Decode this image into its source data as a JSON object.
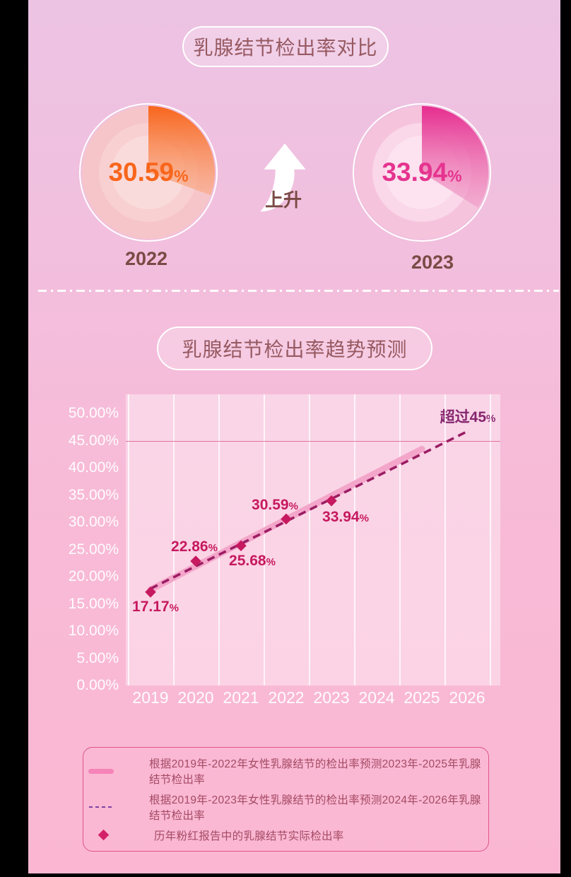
{
  "compare": {
    "title": "乳腺结节检出率对比",
    "arrow_label": "上升",
    "donuts": [
      {
        "year": "2022",
        "value": 30.59,
        "value_text": "30.59",
        "pct": "%",
        "accent": "#f8661c",
        "accent_fade": "#f9a57d",
        "base": "#f6c5c9",
        "ring1": "#f8d0d2",
        "ring2": "#fadbdb",
        "text_color": "#f8661c"
      },
      {
        "year": "2023",
        "value": 33.94,
        "value_text": "33.94",
        "pct": "%",
        "accent": "#e62d8f",
        "accent_fade": "#ef9ac6",
        "base": "#f6c3dd",
        "ring1": "#fad7e9",
        "ring2": "#fce3ef",
        "text_color": "#e5348f"
      }
    ]
  },
  "trend": {
    "title": "乳腺结节检出率趋势预测"
  },
  "chart_data": {
    "type": "line",
    "x_labels": [
      "2019",
      "2020",
      "2021",
      "2022",
      "2023",
      "2024",
      "2025",
      "2026"
    ],
    "y_ticks": [
      "0.00%",
      "5.00%",
      "10.00%",
      "15.00%",
      "20.00%",
      "25.00%",
      "30.00%",
      "35.00%",
      "40.00%",
      "45.00%",
      "50.00%"
    ],
    "ylim": [
      0,
      50
    ],
    "grid": true,
    "threshold": {
      "value": 45,
      "line_color": "#e0719c"
    },
    "annotation": {
      "text": "超过45",
      "pct": "%",
      "color": "#85256e"
    },
    "series": [
      {
        "name": "prediction_from_2019_2022",
        "style": "solid",
        "color": "#f3a6ca",
        "x": [
          2019,
          2025
        ],
        "y": [
          17.61,
          43.46
        ]
      },
      {
        "name": "prediction_from_2019_2023",
        "style": "dashed",
        "color": "#9b1d62",
        "x": [
          2019,
          2026
        ],
        "y": [
          17.79,
          46.68
        ]
      },
      {
        "name": "actual_detection_rate",
        "style": "points",
        "color": "#c6195f",
        "x": [
          2019,
          2020,
          2021,
          2022,
          2023
        ],
        "y": [
          17.17,
          22.86,
          25.68,
          30.59,
          33.94
        ],
        "labels": [
          "17.17",
          "22.86",
          "25.68",
          "30.59",
          "33.94"
        ],
        "pct": "%",
        "label_offsets": [
          [
            7,
            21
          ],
          [
            -2,
            -20
          ],
          [
            16,
            22
          ],
          [
            -16,
            -19
          ],
          [
            20,
            23
          ]
        ]
      }
    ]
  },
  "legend": {
    "items": [
      {
        "swatch": "line-solid",
        "color": "#f584b8",
        "label": "根据2019年-2022年女性乳腺结节的检出率预测2023年-2025年乳腺结节检出率"
      },
      {
        "swatch": "line-dashed",
        "color": "#7d43a5",
        "label": "根据2019年-2023年女性乳腺结节的检出率预测2024年-2026年乳腺结节检出率"
      },
      {
        "swatch": "diamond",
        "color": "#d42069",
        "label": "历年粉红报告中的乳腺结节实际检出率"
      }
    ]
  }
}
